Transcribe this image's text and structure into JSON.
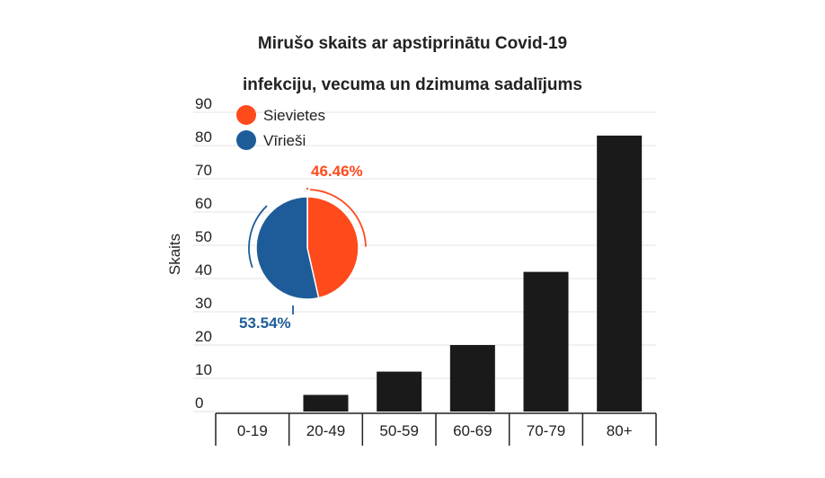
{
  "chart_data": {
    "type": "bar",
    "title_lines": [
      "Mirušo skaits ar apstiprinātu Covid-19",
      "infekciju, vecuma un dzimuma sadalījums"
    ],
    "ylabel": "Skaits",
    "xlabel": "",
    "ylim": [
      0,
      90
    ],
    "yticks": [
      0,
      10,
      20,
      30,
      40,
      50,
      60,
      70,
      80,
      90
    ],
    "categories": [
      "0-19",
      "20-49",
      "50-59",
      "60-69",
      "70-79",
      "80+"
    ],
    "values": [
      0,
      5,
      12,
      20,
      42,
      83
    ],
    "bar_color": "#1a1a1a",
    "grid": true,
    "inset_pie": {
      "type": "pie",
      "legend_position": "top-left",
      "slices": [
        {
          "name": "Sievietes",
          "value": 46.46,
          "label": "46.46%",
          "color": "#ff4a1c"
        },
        {
          "name": "Vīrieši",
          "value": 53.54,
          "label": "53.54%",
          "color": "#1e5c99"
        }
      ]
    }
  }
}
